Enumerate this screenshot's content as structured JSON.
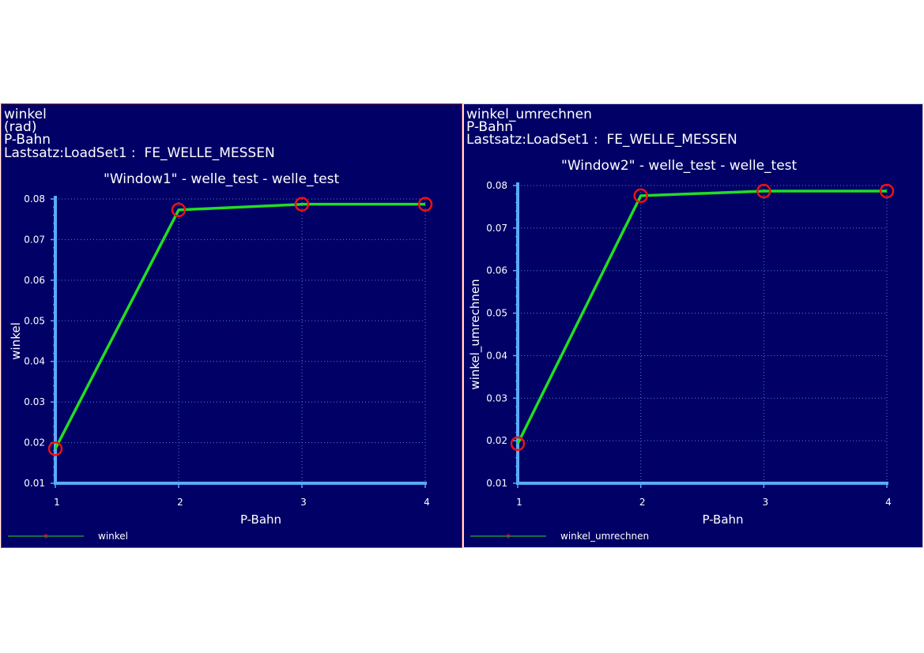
{
  "colors": {
    "background": "#000066",
    "axis": "#5aaaff",
    "grid": "#5b7fd6",
    "line": "#22dd22",
    "marker": "#ee1111",
    "text": "#ffffff"
  },
  "panels": [
    {
      "header": {
        "line1": "winkel",
        "line2": "(rad)",
        "line3": "P-Bahn",
        "line4": "Lastsatz:LoadSet1 :  FE_WELLE_MESSEN"
      },
      "plot_title": "\"Window1\" - welle_test - welle_test",
      "legend_label": "winkel"
    },
    {
      "header": {
        "line1": "winkel_umrechnen",
        "line2": "P-Bahn",
        "line3": "Lastsatz:LoadSet1 :  FE_WELLE_MESSEN"
      },
      "plot_title": "\"Window2\" - welle_test - welle_test",
      "legend_label": "winkel_umrechnen"
    }
  ],
  "chart_data": [
    {
      "type": "line",
      "title": "\"Window1\" - welle_test - welle_test",
      "xlabel": "P-Bahn",
      "ylabel": "winkel",
      "x": [
        1,
        2,
        3,
        4
      ],
      "series": [
        {
          "name": "winkel",
          "values": [
            0.0185,
            0.0773,
            0.0787,
            0.0787
          ]
        }
      ],
      "xlim": [
        1,
        4
      ],
      "ylim": [
        0.01,
        0.08
      ],
      "xticks": [
        "1",
        "2",
        "3",
        "4"
      ],
      "yticks": [
        "0.01",
        "0.02",
        "0.03",
        "0.04",
        "0.05",
        "0.06",
        "0.07",
        "0.08"
      ],
      "grid": true,
      "legend": "bottom-left"
    },
    {
      "type": "line",
      "title": "\"Window2\" - welle_test - welle_test",
      "xlabel": "P-Bahn",
      "ylabel": "winkel_umrechnen",
      "x": [
        1,
        2,
        3,
        4
      ],
      "series": [
        {
          "name": "winkel_umrechnen",
          "values": [
            0.0193,
            0.0776,
            0.0787,
            0.0787
          ]
        }
      ],
      "xlim": [
        1,
        4
      ],
      "ylim": [
        0.01,
        0.08
      ],
      "xticks": [
        "1",
        "2",
        "3",
        "4"
      ],
      "yticks": [
        "0.01",
        "0.02",
        "0.03",
        "0.04",
        "0.05",
        "0.06",
        "0.07",
        "0.08"
      ],
      "grid": true,
      "legend": "bottom-left"
    }
  ]
}
